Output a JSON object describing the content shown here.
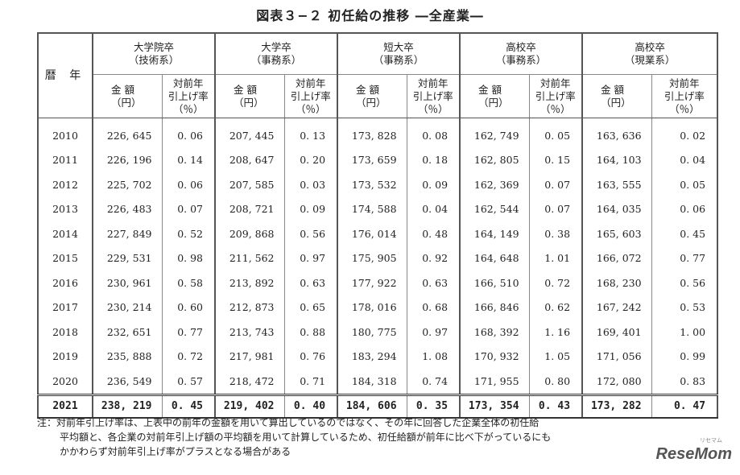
{
  "title": "図表３−２ 初任給の推移 ―全産業―",
  "header": {
    "year_label": "暦 年",
    "groups": [
      {
        "line1": "大学院卒",
        "line2": "（技術系）"
      },
      {
        "line1": "大学卒",
        "line2": "（事務系）"
      },
      {
        "line1": "短大卒",
        "line2": "（事務系）"
      },
      {
        "line1": "高校卒",
        "line2": "（事務系）"
      },
      {
        "line1": "高校卒",
        "line2": "（現業系）"
      }
    ],
    "amount_line1": "金 額",
    "amount_line2": "（円）",
    "rate_line1": "対前年",
    "rate_line2": "引上げ率",
    "rate_line3": "（％）"
  },
  "rows": [
    {
      "year": "2010",
      "cells": [
        "226, 645",
        "0. 06",
        "207, 445",
        "0. 13",
        "173, 828",
        "0. 08",
        "162, 749",
        "0. 05",
        "163, 636",
        "0. 02"
      ]
    },
    {
      "year": "2011",
      "cells": [
        "226, 196",
        "0. 14",
        "208, 647",
        "0. 20",
        "173, 659",
        "0. 18",
        "162, 805",
        "0. 15",
        "164, 103",
        "0. 04"
      ]
    },
    {
      "year": "2012",
      "cells": [
        "225, 702",
        "0. 06",
        "207, 585",
        "0. 03",
        "173, 532",
        "0. 09",
        "162, 369",
        "0. 07",
        "163, 555",
        "0. 05"
      ]
    },
    {
      "year": "2013",
      "cells": [
        "226, 483",
        "0. 07",
        "208, 721",
        "0. 09",
        "174, 588",
        "0. 04",
        "162, 544",
        "0. 07",
        "164, 035",
        "0. 06"
      ]
    },
    {
      "year": "2014",
      "cells": [
        "227, 849",
        "0. 52",
        "209, 868",
        "0. 56",
        "176, 014",
        "0. 48",
        "164, 149",
        "0. 38",
        "165, 603",
        "0. 45"
      ]
    },
    {
      "year": "2015",
      "cells": [
        "229, 531",
        "0. 98",
        "211, 562",
        "0. 97",
        "175, 905",
        "0. 92",
        "164, 648",
        "1. 01",
        "166, 072",
        "0. 77"
      ]
    },
    {
      "year": "2016",
      "cells": [
        "230, 961",
        "0. 58",
        "213, 892",
        "0. 63",
        "177, 922",
        "0. 63",
        "166, 510",
        "0. 72",
        "168, 230",
        "0. 56"
      ]
    },
    {
      "year": "2017",
      "cells": [
        "230, 214",
        "0. 60",
        "212, 873",
        "0. 65",
        "178, 016",
        "0. 68",
        "166, 846",
        "0. 62",
        "167, 242",
        "0. 53"
      ]
    },
    {
      "year": "2018",
      "cells": [
        "232, 651",
        "0. 77",
        "213, 743",
        "0. 88",
        "180, 775",
        "0. 97",
        "168, 392",
        "1. 16",
        "169, 401",
        "1. 00"
      ]
    },
    {
      "year": "2019",
      "cells": [
        "235, 888",
        "0. 72",
        "217, 981",
        "0. 76",
        "183, 294",
        "1. 08",
        "170, 932",
        "1. 05",
        "171, 056",
        "0. 99"
      ]
    },
    {
      "year": "2020",
      "cells": [
        "236, 549",
        "0. 57",
        "218, 472",
        "0. 71",
        "184, 318",
        "0. 74",
        "171, 955",
        "0. 80",
        "172, 080",
        "0. 83"
      ]
    }
  ],
  "total_row": {
    "year": "2021",
    "cells": [
      "238, 219",
      "0. 45",
      "219, 402",
      "0. 40",
      "184, 606",
      "0. 35",
      "173, 354",
      "0. 43",
      "173, 282",
      "0. 47"
    ]
  },
  "note": {
    "line1": "注：対前年引上げ率は、上表中の前年の金額を用いて算出しているのではなく、その年に回答した企業全体の初任給",
    "line2": "平均額と、各企業の対前年引上げ額の平均額を用いて計算しているため、初任給額が前年に比べ下がっているにも",
    "line3": "かかわらず対前年引上げ率がプラスとなる場合がある"
  },
  "watermark": {
    "small": "リセマム",
    "logo": "ReseMom"
  }
}
